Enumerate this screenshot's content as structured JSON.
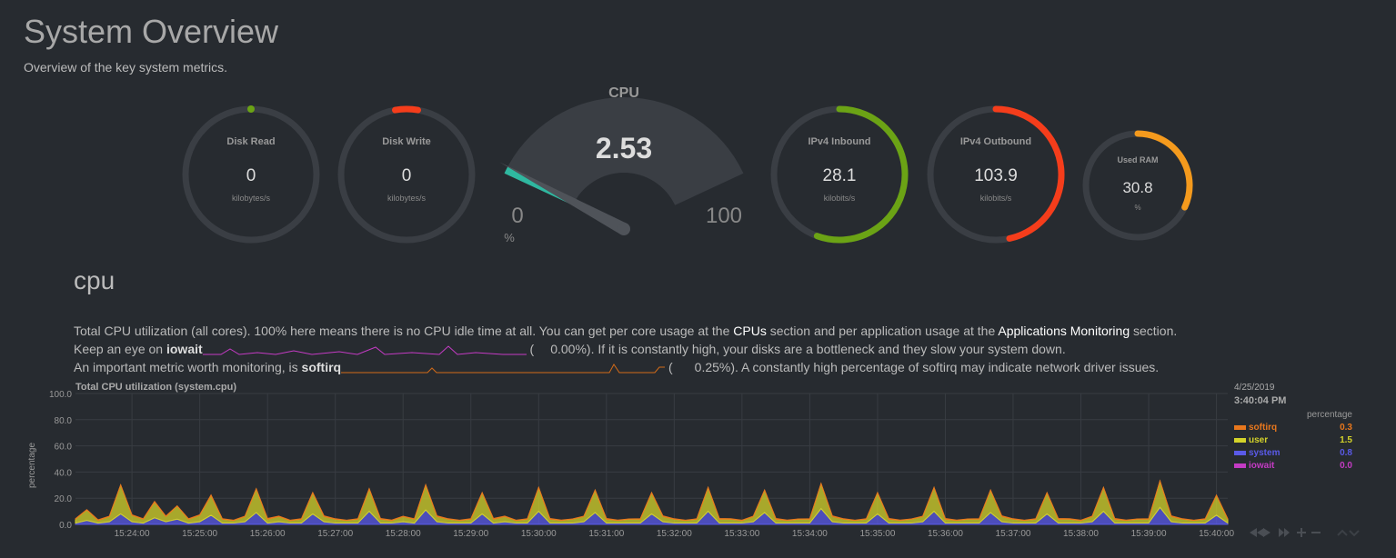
{
  "header": {
    "title": "System Overview",
    "subtitle": "Overview of the key system metrics."
  },
  "gauges": [
    {
      "title": "Disk Read",
      "value": 0,
      "units": "kilobytes/s",
      "color": "#6ba315"
    },
    {
      "title": "Disk Write",
      "value": 0,
      "units": "kilobytes/s",
      "color": "#f53d1b"
    },
    {
      "title": "IPv4 Inbound",
      "value": 28.1,
      "units": "kilobits/s",
      "color": "#6ba315"
    },
    {
      "title": "IPv4 Outbound",
      "value": 103.9,
      "units": "kilobits/s",
      "color": "#f53d1b"
    },
    {
      "title": "Used RAM",
      "value": 30.8,
      "units": "%",
      "color": "#f49a1d"
    }
  ],
  "cpu_gauge": {
    "title": "CPU",
    "value": 2.53,
    "min": 0,
    "max": 100,
    "units": "%",
    "color": "#2fb8a0"
  },
  "section": {
    "heading": "cpu",
    "lines": [
      [
        "Total CPU utilization (all cores). 100% here means there is no CPU idle time at all. You can get per core usage at the ",
        "CPUs",
        " section and per application usage at the ",
        "Applications Monitoring",
        " section."
      ],
      [
        "Keep an eye on ",
        "iowait",
        " (",
        "0.00%",
        "). If it is constantly high, your disks are a bottleneck and they slow your system down."
      ],
      [
        "An important metric worth monitoring, is ",
        "softirq",
        " (",
        "0.25%",
        "). A constantly high percentage of softirq may indicate network driver issues."
      ]
    ]
  },
  "chart_data": {
    "type": "stacked_area",
    "title": "Total CPU utilization (system.cpu)",
    "ylabel": "percentage",
    "legend_units": "percentage",
    "legend_date": "4/25/2019",
    "legend_time": "3:40:04 PM",
    "ylim": [
      0,
      100
    ],
    "yticks": [
      {
        "value": 0,
        "label": "0.0"
      },
      {
        "value": 20,
        "label": "20.0"
      },
      {
        "value": 40,
        "label": "40.0"
      },
      {
        "value": 60,
        "label": "60.0"
      },
      {
        "value": 80,
        "label": "80.0"
      },
      {
        "value": 100,
        "label": "100.0"
      }
    ],
    "xlim": [
      "15:23:10",
      "15:40:10"
    ],
    "xticks": [
      "15:24:00",
      "15:25:00",
      "15:26:00",
      "15:27:00",
      "15:28:00",
      "15:29:00",
      "15:30:00",
      "15:31:00",
      "15:32:00",
      "15:33:00",
      "15:34:00",
      "15:35:00",
      "15:36:00",
      "15:37:00",
      "15:38:00",
      "15:39:00",
      "15:40:00"
    ],
    "grid": true,
    "x": [
      "15:23:10",
      "15:23:20",
      "15:23:30",
      "15:23:40",
      "15:23:50",
      "15:24:00",
      "15:24:10",
      "15:24:20",
      "15:24:30",
      "15:24:40",
      "15:24:50",
      "15:25:00",
      "15:25:10",
      "15:25:20",
      "15:25:30",
      "15:25:40",
      "15:25:50",
      "15:26:00",
      "15:26:10",
      "15:26:20",
      "15:26:30",
      "15:26:40",
      "15:26:50",
      "15:27:00",
      "15:27:10",
      "15:27:20",
      "15:27:30",
      "15:27:40",
      "15:27:50",
      "15:28:00",
      "15:28:10",
      "15:28:20",
      "15:28:30",
      "15:28:40",
      "15:28:50",
      "15:29:00",
      "15:29:10",
      "15:29:20",
      "15:29:30",
      "15:29:40",
      "15:29:50",
      "15:30:00",
      "15:30:10",
      "15:30:20",
      "15:30:30",
      "15:30:40",
      "15:30:50",
      "15:31:00",
      "15:31:10",
      "15:31:20",
      "15:31:30",
      "15:31:40",
      "15:31:50",
      "15:32:00",
      "15:32:10",
      "15:32:20",
      "15:32:30",
      "15:32:40",
      "15:32:50",
      "15:33:00",
      "15:33:10",
      "15:33:20",
      "15:33:30",
      "15:33:40",
      "15:33:50",
      "15:34:00",
      "15:34:10",
      "15:34:20",
      "15:34:30",
      "15:34:40",
      "15:34:50",
      "15:35:00",
      "15:35:10",
      "15:35:20",
      "15:35:30",
      "15:35:40",
      "15:35:50",
      "15:36:00",
      "15:36:10",
      "15:36:20",
      "15:36:30",
      "15:36:40",
      "15:36:50",
      "15:37:00",
      "15:37:10",
      "15:37:20",
      "15:37:30",
      "15:37:40",
      "15:37:50",
      "15:38:00",
      "15:38:10",
      "15:38:20",
      "15:38:30",
      "15:38:40",
      "15:38:50",
      "15:39:00",
      "15:39:10",
      "15:39:20",
      "15:39:30",
      "15:39:40",
      "15:39:50",
      "15:40:00",
      "15:40:10"
    ],
    "series": [
      {
        "name": "softirq",
        "color": "#e8771d",
        "current": "0.3",
        "values": [
          0.3,
          0.3,
          0.5,
          0.3,
          0.2,
          0.3,
          0.3,
          0.5,
          0.3,
          0.2,
          0.3,
          0.3,
          0.5,
          0.3,
          0.2,
          0.3,
          0.3,
          0.5,
          0.3,
          0.2,
          0.3,
          0.3,
          0.5,
          0.3,
          0.2,
          0.3,
          0.3,
          0.5,
          0.3,
          0.2,
          0.3,
          0.3,
          0.5,
          0.3,
          0.2,
          0.3,
          0.3,
          0.5,
          0.3,
          0.2,
          0.3,
          0.3,
          0.5,
          0.3,
          0.2,
          0.3,
          0.3,
          0.5,
          0.3,
          0.2,
          0.3,
          0.3,
          0.5,
          0.3,
          0.2,
          0.3,
          0.3,
          0.5,
          0.3,
          0.2,
          0.3,
          0.3,
          0.5,
          0.3,
          0.2,
          0.3,
          0.3,
          0.5,
          0.3,
          0.2,
          0.3,
          0.3,
          0.5,
          0.3,
          0.2,
          0.3,
          0.3,
          0.5,
          0.3,
          0.2,
          0.3,
          0.3,
          0.5,
          0.3,
          0.2,
          0.3,
          0.3,
          0.5,
          0.3,
          0.2,
          0.3,
          0.3,
          0.5,
          0.3,
          0.2,
          0.3,
          0.3,
          0.5,
          0.3,
          0.2,
          0.3,
          0.4,
          0.3
        ]
      },
      {
        "name": "user",
        "color": "#d4d32a",
        "current": "1.5",
        "values": [
          3,
          8,
          2,
          4,
          22,
          5,
          3,
          12,
          4,
          10,
          3,
          5,
          15,
          3,
          2,
          4,
          18,
          3,
          4,
          2,
          3,
          16,
          4,
          3,
          2,
          3,
          17,
          3,
          2,
          4,
          3,
          19,
          4,
          3,
          2,
          3,
          16,
          3,
          4,
          2,
          3,
          18,
          3,
          2,
          3,
          4,
          17,
          3,
          2,
          3,
          3,
          16,
          4,
          3,
          2,
          3,
          18,
          3,
          3,
          2,
          4,
          17,
          3,
          2,
          3,
          3,
          19,
          4,
          3,
          2,
          3,
          16,
          3,
          2,
          3,
          4,
          18,
          3,
          2,
          3,
          3,
          17,
          4,
          3,
          2,
          3,
          16,
          3,
          3,
          2,
          4,
          18,
          3,
          2,
          3,
          3,
          20,
          4,
          3,
          2,
          3,
          15,
          3
        ]
      },
      {
        "name": "system",
        "color": "#5a5ae8",
        "current": "0.8",
        "values": [
          1,
          3,
          1,
          2,
          8,
          2,
          1,
          5,
          2,
          4,
          1,
          2,
          7,
          1,
          1,
          2,
          9,
          1,
          2,
          1,
          1,
          8,
          2,
          1,
          1,
          1,
          10,
          1,
          1,
          2,
          1,
          11,
          2,
          1,
          1,
          1,
          8,
          1,
          2,
          1,
          1,
          10,
          1,
          1,
          1,
          2,
          9,
          1,
          1,
          1,
          1,
          8,
          2,
          1,
          1,
          1,
          10,
          1,
          1,
          1,
          2,
          9,
          1,
          1,
          1,
          1,
          12,
          2,
          1,
          1,
          1,
          8,
          1,
          1,
          1,
          2,
          10,
          1,
          1,
          1,
          1,
          9,
          2,
          1,
          1,
          1,
          8,
          1,
          1,
          1,
          2,
          10,
          1,
          1,
          1,
          1,
          13,
          2,
          1,
          1,
          1,
          7,
          1
        ]
      },
      {
        "name": "iowait",
        "color": "#c43bc4",
        "current": "0.0",
        "values": [
          0,
          0,
          0,
          0,
          0,
          0,
          0,
          0,
          0,
          0,
          0,
          0,
          0,
          0,
          0,
          0,
          0,
          0,
          0,
          0,
          0,
          0,
          0,
          0,
          0,
          0,
          0,
          0,
          0,
          0,
          0,
          0,
          0,
          0,
          0,
          0,
          0,
          0,
          0,
          0,
          0,
          0,
          0,
          0,
          0,
          0,
          0,
          0,
          0,
          0,
          0,
          0,
          0,
          0,
          0,
          0,
          0,
          0,
          0,
          0,
          0,
          0,
          0,
          0,
          0,
          0,
          0,
          0,
          0,
          0,
          0,
          0,
          0,
          0,
          0,
          0,
          0,
          0,
          0,
          0,
          0,
          0,
          0,
          0,
          0,
          0,
          0,
          0,
          0,
          0,
          0,
          0,
          0,
          0,
          0,
          0,
          0,
          0,
          0,
          0,
          0,
          0,
          0
        ]
      }
    ]
  }
}
